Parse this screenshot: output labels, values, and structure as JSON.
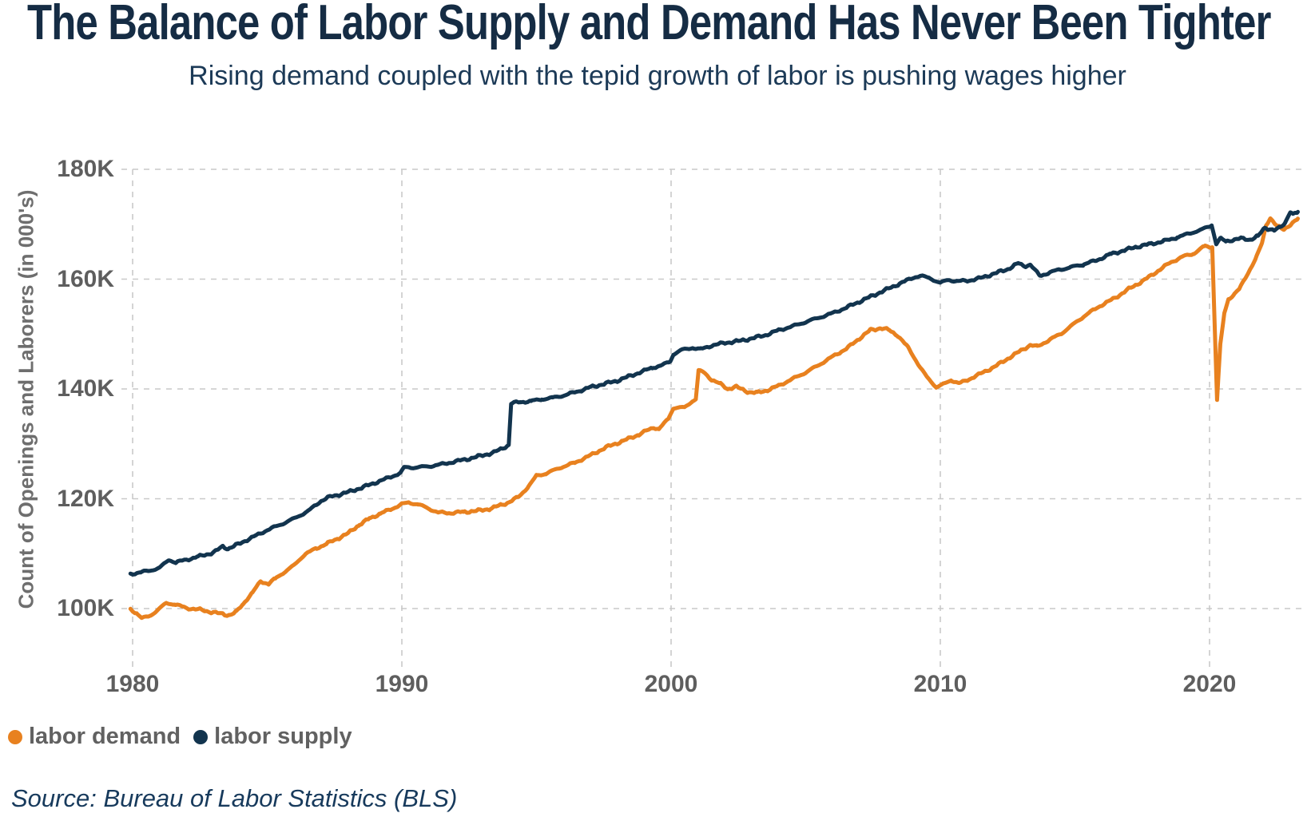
{
  "header": {
    "title": "The Balance of Labor Supply and Demand Has Never Been Tighter",
    "subtitle": "Rising demand coupled with the tepid growth of labor is pushing wages higher"
  },
  "source": "Source: Bureau of Labor Statistics (BLS)",
  "colors": {
    "demand_orange": "#E8811F",
    "supply_navy": "#12344E",
    "grid_gray": "#c9c9c9",
    "axis_text_gray": "#5e5e5e",
    "navy_text": "#152c44"
  },
  "y_axis": {
    "title": "Count of Openings and Laborers (in 000's)",
    "ticks": [
      {
        "label": "180K",
        "value": 180
      },
      {
        "label": "160K",
        "value": 160
      },
      {
        "label": "140K",
        "value": 140
      },
      {
        "label": "120K",
        "value": 120
      },
      {
        "label": "100K",
        "value": 100
      }
    ]
  },
  "x_axis": {
    "ticks": [
      {
        "label": "1980",
        "value": 1980
      },
      {
        "label": "1990",
        "value": 1990
      },
      {
        "label": "2000",
        "value": 2000
      },
      {
        "label": "2010",
        "value": 2010
      },
      {
        "label": "2020",
        "value": 2020
      }
    ]
  },
  "legend": [
    {
      "label": "labor demand",
      "color": "#E8811F"
    },
    {
      "label": "labor supply",
      "color": "#12344E"
    }
  ],
  "chart_data": {
    "type": "line",
    "title": "The Balance of Labor Supply and Demand Has Never Been Tighter",
    "subtitle": "Rising demand coupled with the tepid growth of labor is pushing wages higher",
    "xlabel": "",
    "ylabel": "Count of Openings and Laborers (in 000's)",
    "units": "thousands (K)",
    "x_range": [
      1979.9,
      2023.3
    ],
    "y_ticks": [
      100,
      120,
      140,
      160,
      180
    ],
    "x_ticks": [
      1980,
      1990,
      2000,
      2010,
      2020
    ],
    "grid": "dashed",
    "legend_position": "bottom-left",
    "series": [
      {
        "name": "labor demand",
        "color": "#E8811F",
        "points": [
          [
            1979.92,
            99.9
          ],
          [
            1980.15,
            99.1
          ],
          [
            1980.35,
            98.2
          ],
          [
            1980.65,
            98.7
          ],
          [
            1980.9,
            99.6
          ],
          [
            1981.25,
            101.0
          ],
          [
            1981.55,
            100.8
          ],
          [
            1982.0,
            100.1
          ],
          [
            1982.5,
            99.8
          ],
          [
            1983.0,
            99.3
          ],
          [
            1983.35,
            99.0
          ],
          [
            1983.6,
            98.8
          ],
          [
            1983.85,
            99.4
          ],
          [
            1984.1,
            100.8
          ],
          [
            1984.45,
            102.9
          ],
          [
            1984.75,
            105.0
          ],
          [
            1985.05,
            104.5
          ],
          [
            1985.3,
            105.5
          ],
          [
            1985.6,
            106.5
          ],
          [
            1986.0,
            107.9
          ],
          [
            1986.4,
            109.9
          ],
          [
            1986.8,
            110.9
          ],
          [
            1987.2,
            111.8
          ],
          [
            1987.6,
            112.7
          ],
          [
            1988.0,
            113.7
          ],
          [
            1988.4,
            115.2
          ],
          [
            1988.8,
            116.4
          ],
          [
            1989.2,
            117.3
          ],
          [
            1989.6,
            118.1
          ],
          [
            1990.0,
            119.0
          ],
          [
            1990.25,
            119.3
          ],
          [
            1990.6,
            119.0
          ],
          [
            1991.0,
            118.2
          ],
          [
            1991.35,
            117.5
          ],
          [
            1991.8,
            117.4
          ],
          [
            1992.3,
            117.6
          ],
          [
            1992.8,
            117.8
          ],
          [
            1993.3,
            118.2
          ],
          [
            1993.7,
            118.9
          ],
          [
            1994.0,
            119.4
          ],
          [
            1994.35,
            120.4
          ],
          [
            1994.7,
            122.2
          ],
          [
            1995.0,
            124.2
          ],
          [
            1995.35,
            124.6
          ],
          [
            1995.9,
            125.7
          ],
          [
            1996.4,
            126.5
          ],
          [
            1997.0,
            127.9
          ],
          [
            1997.6,
            129.4
          ],
          [
            1998.2,
            130.5
          ],
          [
            1998.8,
            131.7
          ],
          [
            1999.35,
            133.0
          ],
          [
            1999.55,
            132.7
          ],
          [
            1999.9,
            134.6
          ],
          [
            2000.1,
            136.6
          ],
          [
            2000.5,
            136.6
          ],
          [
            2000.8,
            137.8
          ],
          [
            2000.92,
            138.2
          ],
          [
            2001.02,
            143.3
          ],
          [
            2001.2,
            143.1
          ],
          [
            2001.5,
            141.7
          ],
          [
            2001.8,
            141.0
          ],
          [
            2002.1,
            140.0
          ],
          [
            2002.4,
            140.4
          ],
          [
            2002.9,
            139.4
          ],
          [
            2003.2,
            139.3
          ],
          [
            2003.6,
            139.8
          ],
          [
            2004.0,
            140.6
          ],
          [
            2004.5,
            141.8
          ],
          [
            2005.0,
            143.0
          ],
          [
            2005.5,
            144.4
          ],
          [
            2006.0,
            145.9
          ],
          [
            2006.5,
            147.3
          ],
          [
            2007.0,
            149.2
          ],
          [
            2007.4,
            150.7
          ],
          [
            2007.8,
            151.1
          ],
          [
            2008.1,
            150.7
          ],
          [
            2008.4,
            149.8
          ],
          [
            2008.8,
            147.6
          ],
          [
            2009.2,
            144.3
          ],
          [
            2009.5,
            142.2
          ],
          [
            2009.85,
            140.3
          ],
          [
            2010.1,
            140.8
          ],
          [
            2010.4,
            141.6
          ],
          [
            2010.7,
            141.0
          ],
          [
            2011.0,
            141.6
          ],
          [
            2011.5,
            142.8
          ],
          [
            2012.0,
            144.0
          ],
          [
            2012.5,
            145.5
          ],
          [
            2013.0,
            147.0
          ],
          [
            2013.35,
            148.0
          ],
          [
            2013.6,
            147.7
          ],
          [
            2014.0,
            148.8
          ],
          [
            2014.5,
            150.1
          ],
          [
            2015.0,
            152.0
          ],
          [
            2015.5,
            153.8
          ],
          [
            2016.0,
            155.3
          ],
          [
            2016.5,
            156.6
          ],
          [
            2017.0,
            158.2
          ],
          [
            2017.5,
            159.6
          ],
          [
            2018.0,
            161.2
          ],
          [
            2018.5,
            162.9
          ],
          [
            2019.0,
            164.1
          ],
          [
            2019.4,
            164.6
          ],
          [
            2019.8,
            166.0
          ],
          [
            2020.1,
            165.8
          ],
          [
            2020.28,
            138.0
          ],
          [
            2020.4,
            148.2
          ],
          [
            2020.55,
            153.8
          ],
          [
            2020.7,
            156.3
          ],
          [
            2020.9,
            157.2
          ],
          [
            2021.1,
            158.2
          ],
          [
            2021.4,
            160.8
          ],
          [
            2021.7,
            163.6
          ],
          [
            2021.95,
            166.6
          ],
          [
            2022.1,
            169.8
          ],
          [
            2022.26,
            171.1
          ],
          [
            2022.5,
            169.6
          ],
          [
            2022.76,
            169.1
          ],
          [
            2023.0,
            169.9
          ],
          [
            2023.28,
            170.9
          ]
        ]
      },
      {
        "name": "labor supply",
        "color": "#12344E",
        "points": [
          [
            1979.92,
            106.3
          ],
          [
            1980.3,
            106.6
          ],
          [
            1980.7,
            107.0
          ],
          [
            1981.0,
            107.4
          ],
          [
            1981.35,
            108.9
          ],
          [
            1981.6,
            108.4
          ],
          [
            1982.0,
            108.9
          ],
          [
            1982.4,
            109.4
          ],
          [
            1983.0,
            110.2
          ],
          [
            1983.35,
            111.3
          ],
          [
            1983.55,
            110.9
          ],
          [
            1984.0,
            111.9
          ],
          [
            1984.5,
            113.1
          ],
          [
            1985.0,
            114.3
          ],
          [
            1985.5,
            115.3
          ],
          [
            1986.0,
            116.4
          ],
          [
            1986.5,
            117.7
          ],
          [
            1987.0,
            119.6
          ],
          [
            1987.3,
            120.3
          ],
          [
            1987.7,
            120.8
          ],
          [
            1988.0,
            121.2
          ],
          [
            1988.5,
            122.0
          ],
          [
            1989.0,
            122.9
          ],
          [
            1989.5,
            123.8
          ],
          [
            1989.95,
            124.7
          ],
          [
            1990.08,
            125.7
          ],
          [
            1990.5,
            125.7
          ],
          [
            1991.0,
            125.9
          ],
          [
            1991.5,
            126.3
          ],
          [
            1992.0,
            126.8
          ],
          [
            1992.5,
            127.3
          ],
          [
            1993.0,
            127.9
          ],
          [
            1993.4,
            128.4
          ],
          [
            1993.75,
            129.2
          ],
          [
            1993.97,
            129.8
          ],
          [
            1994.06,
            137.4
          ],
          [
            1994.4,
            137.6
          ],
          [
            1994.8,
            137.8
          ],
          [
            1995.2,
            138.1
          ],
          [
            1995.6,
            138.4
          ],
          [
            1996.0,
            138.8
          ],
          [
            1996.5,
            139.5
          ],
          [
            1997.0,
            140.3
          ],
          [
            1997.5,
            140.9
          ],
          [
            1998.0,
            141.5
          ],
          [
            1998.5,
            142.4
          ],
          [
            1999.0,
            143.3
          ],
          [
            1999.3,
            143.9
          ],
          [
            1999.6,
            144.2
          ],
          [
            1999.97,
            145.0
          ],
          [
            2000.1,
            146.4
          ],
          [
            2000.4,
            147.1
          ],
          [
            2000.8,
            147.5
          ],
          [
            2001.1,
            147.2
          ],
          [
            2001.5,
            147.9
          ],
          [
            2002.0,
            148.4
          ],
          [
            2002.5,
            148.7
          ],
          [
            2003.0,
            149.2
          ],
          [
            2003.5,
            149.8
          ],
          [
            2004.0,
            150.7
          ],
          [
            2004.5,
            151.4
          ],
          [
            2005.0,
            152.2
          ],
          [
            2005.5,
            153.0
          ],
          [
            2006.0,
            153.8
          ],
          [
            2006.5,
            154.8
          ],
          [
            2007.0,
            155.9
          ],
          [
            2007.5,
            157.0
          ],
          [
            2008.0,
            158.1
          ],
          [
            2008.5,
            159.2
          ],
          [
            2009.0,
            160.3
          ],
          [
            2009.25,
            160.6
          ],
          [
            2009.6,
            160.2
          ],
          [
            2010.0,
            159.3
          ],
          [
            2010.3,
            159.9
          ],
          [
            2010.6,
            159.6
          ],
          [
            2011.0,
            159.7
          ],
          [
            2011.5,
            160.2
          ],
          [
            2012.0,
            161.0
          ],
          [
            2012.5,
            161.8
          ],
          [
            2012.9,
            162.9
          ],
          [
            2013.1,
            162.4
          ],
          [
            2013.35,
            162.6
          ],
          [
            2013.7,
            160.6
          ],
          [
            2014.0,
            161.1
          ],
          [
            2014.4,
            161.7
          ],
          [
            2014.8,
            162.1
          ],
          [
            2015.3,
            162.7
          ],
          [
            2015.8,
            163.4
          ],
          [
            2016.3,
            164.5
          ],
          [
            2016.8,
            165.2
          ],
          [
            2017.3,
            165.9
          ],
          [
            2017.8,
            166.4
          ],
          [
            2018.3,
            166.9
          ],
          [
            2018.8,
            167.6
          ],
          [
            2019.3,
            168.4
          ],
          [
            2019.7,
            169.0
          ],
          [
            2020.08,
            169.8
          ],
          [
            2020.25,
            166.4
          ],
          [
            2020.4,
            167.4
          ],
          [
            2020.6,
            166.9
          ],
          [
            2020.9,
            167.2
          ],
          [
            2021.2,
            167.4
          ],
          [
            2021.5,
            167.2
          ],
          [
            2021.8,
            167.8
          ],
          [
            2022.05,
            169.4
          ],
          [
            2022.4,
            168.9
          ],
          [
            2022.6,
            169.3
          ],
          [
            2022.8,
            170.2
          ],
          [
            2023.0,
            172.3
          ],
          [
            2023.1,
            171.8
          ],
          [
            2023.28,
            172.1
          ]
        ]
      }
    ]
  }
}
